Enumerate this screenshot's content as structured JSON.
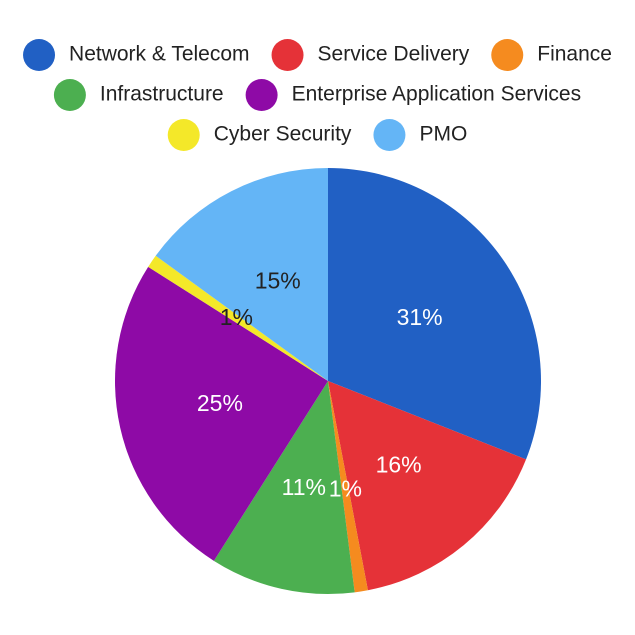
{
  "chart_data": {
    "type": "pie",
    "categories": [
      "Network & Telecom",
      "Service Delivery",
      "Finance",
      "Infrastructure",
      "Enterprise Application Services",
      "Cyber Security",
      "PMO"
    ],
    "values": [
      31,
      16,
      1,
      11,
      25,
      1,
      15
    ],
    "value_labels": [
      "31%",
      "16%",
      "1%",
      "11%",
      "25%",
      "1%",
      "15%"
    ],
    "colors": [
      "#2160c4",
      "#e53238",
      "#f58b1f",
      "#4caf50",
      "#8e0aa6",
      "#f4e829",
      "#64b5f6"
    ],
    "legend": "top"
  }
}
